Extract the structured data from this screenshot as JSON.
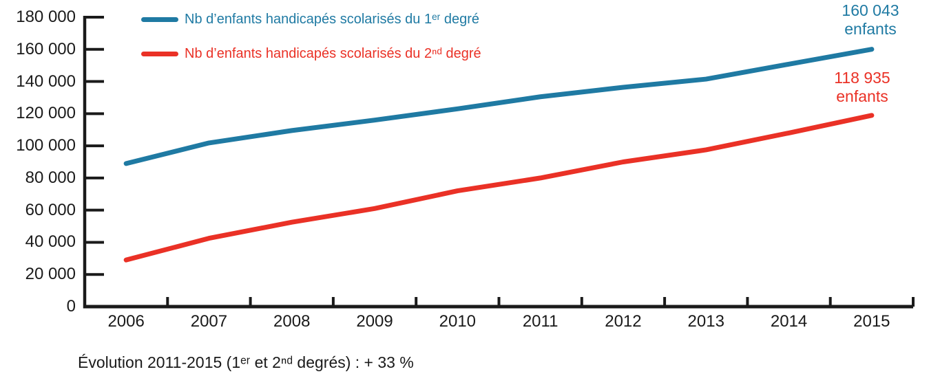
{
  "chart_data": {
    "type": "line",
    "title": "",
    "x": [
      2006,
      2007,
      2008,
      2009,
      2010,
      2011,
      2012,
      2013,
      2014,
      2015
    ],
    "x_labels": [
      "2006",
      "2007",
      "2008",
      "2009",
      "2010",
      "2011",
      "2012",
      "2013",
      "2014",
      "2015"
    ],
    "ylim": [
      0,
      180000
    ],
    "ytick_step": 20000,
    "ytick_labels": [
      "0",
      "20 000",
      "40 000",
      "60 000",
      "80 000",
      "100 000",
      "120 000",
      "140 000",
      "160 000",
      "180 000"
    ],
    "grid": false,
    "legend_position": "top-left-inside",
    "axis_color": "#1a1a1a",
    "series": [
      {
        "name": "Nb d’enfants handicapés scolarisés du 1ᵉʳ degré",
        "color": "#1f7aa3",
        "values": [
          89000,
          101800,
          109500,
          116000,
          123000,
          130500,
          136400,
          141500,
          150800,
          160043
        ],
        "end_label": "160 043\nenfants"
      },
      {
        "name": "Nb d’enfants handicapés scolarisés du 2ⁿᵈ degré",
        "color": "#ea3126",
        "values": [
          29000,
          42500,
          52500,
          61000,
          72000,
          80000,
          90000,
          97500,
          108000,
          118935
        ],
        "end_label": "118 935\nenfants"
      }
    ],
    "caption": "Évolution 2011-2015 (1ᵉʳ et 2ⁿᵈ degrés) : + 33 %"
  }
}
